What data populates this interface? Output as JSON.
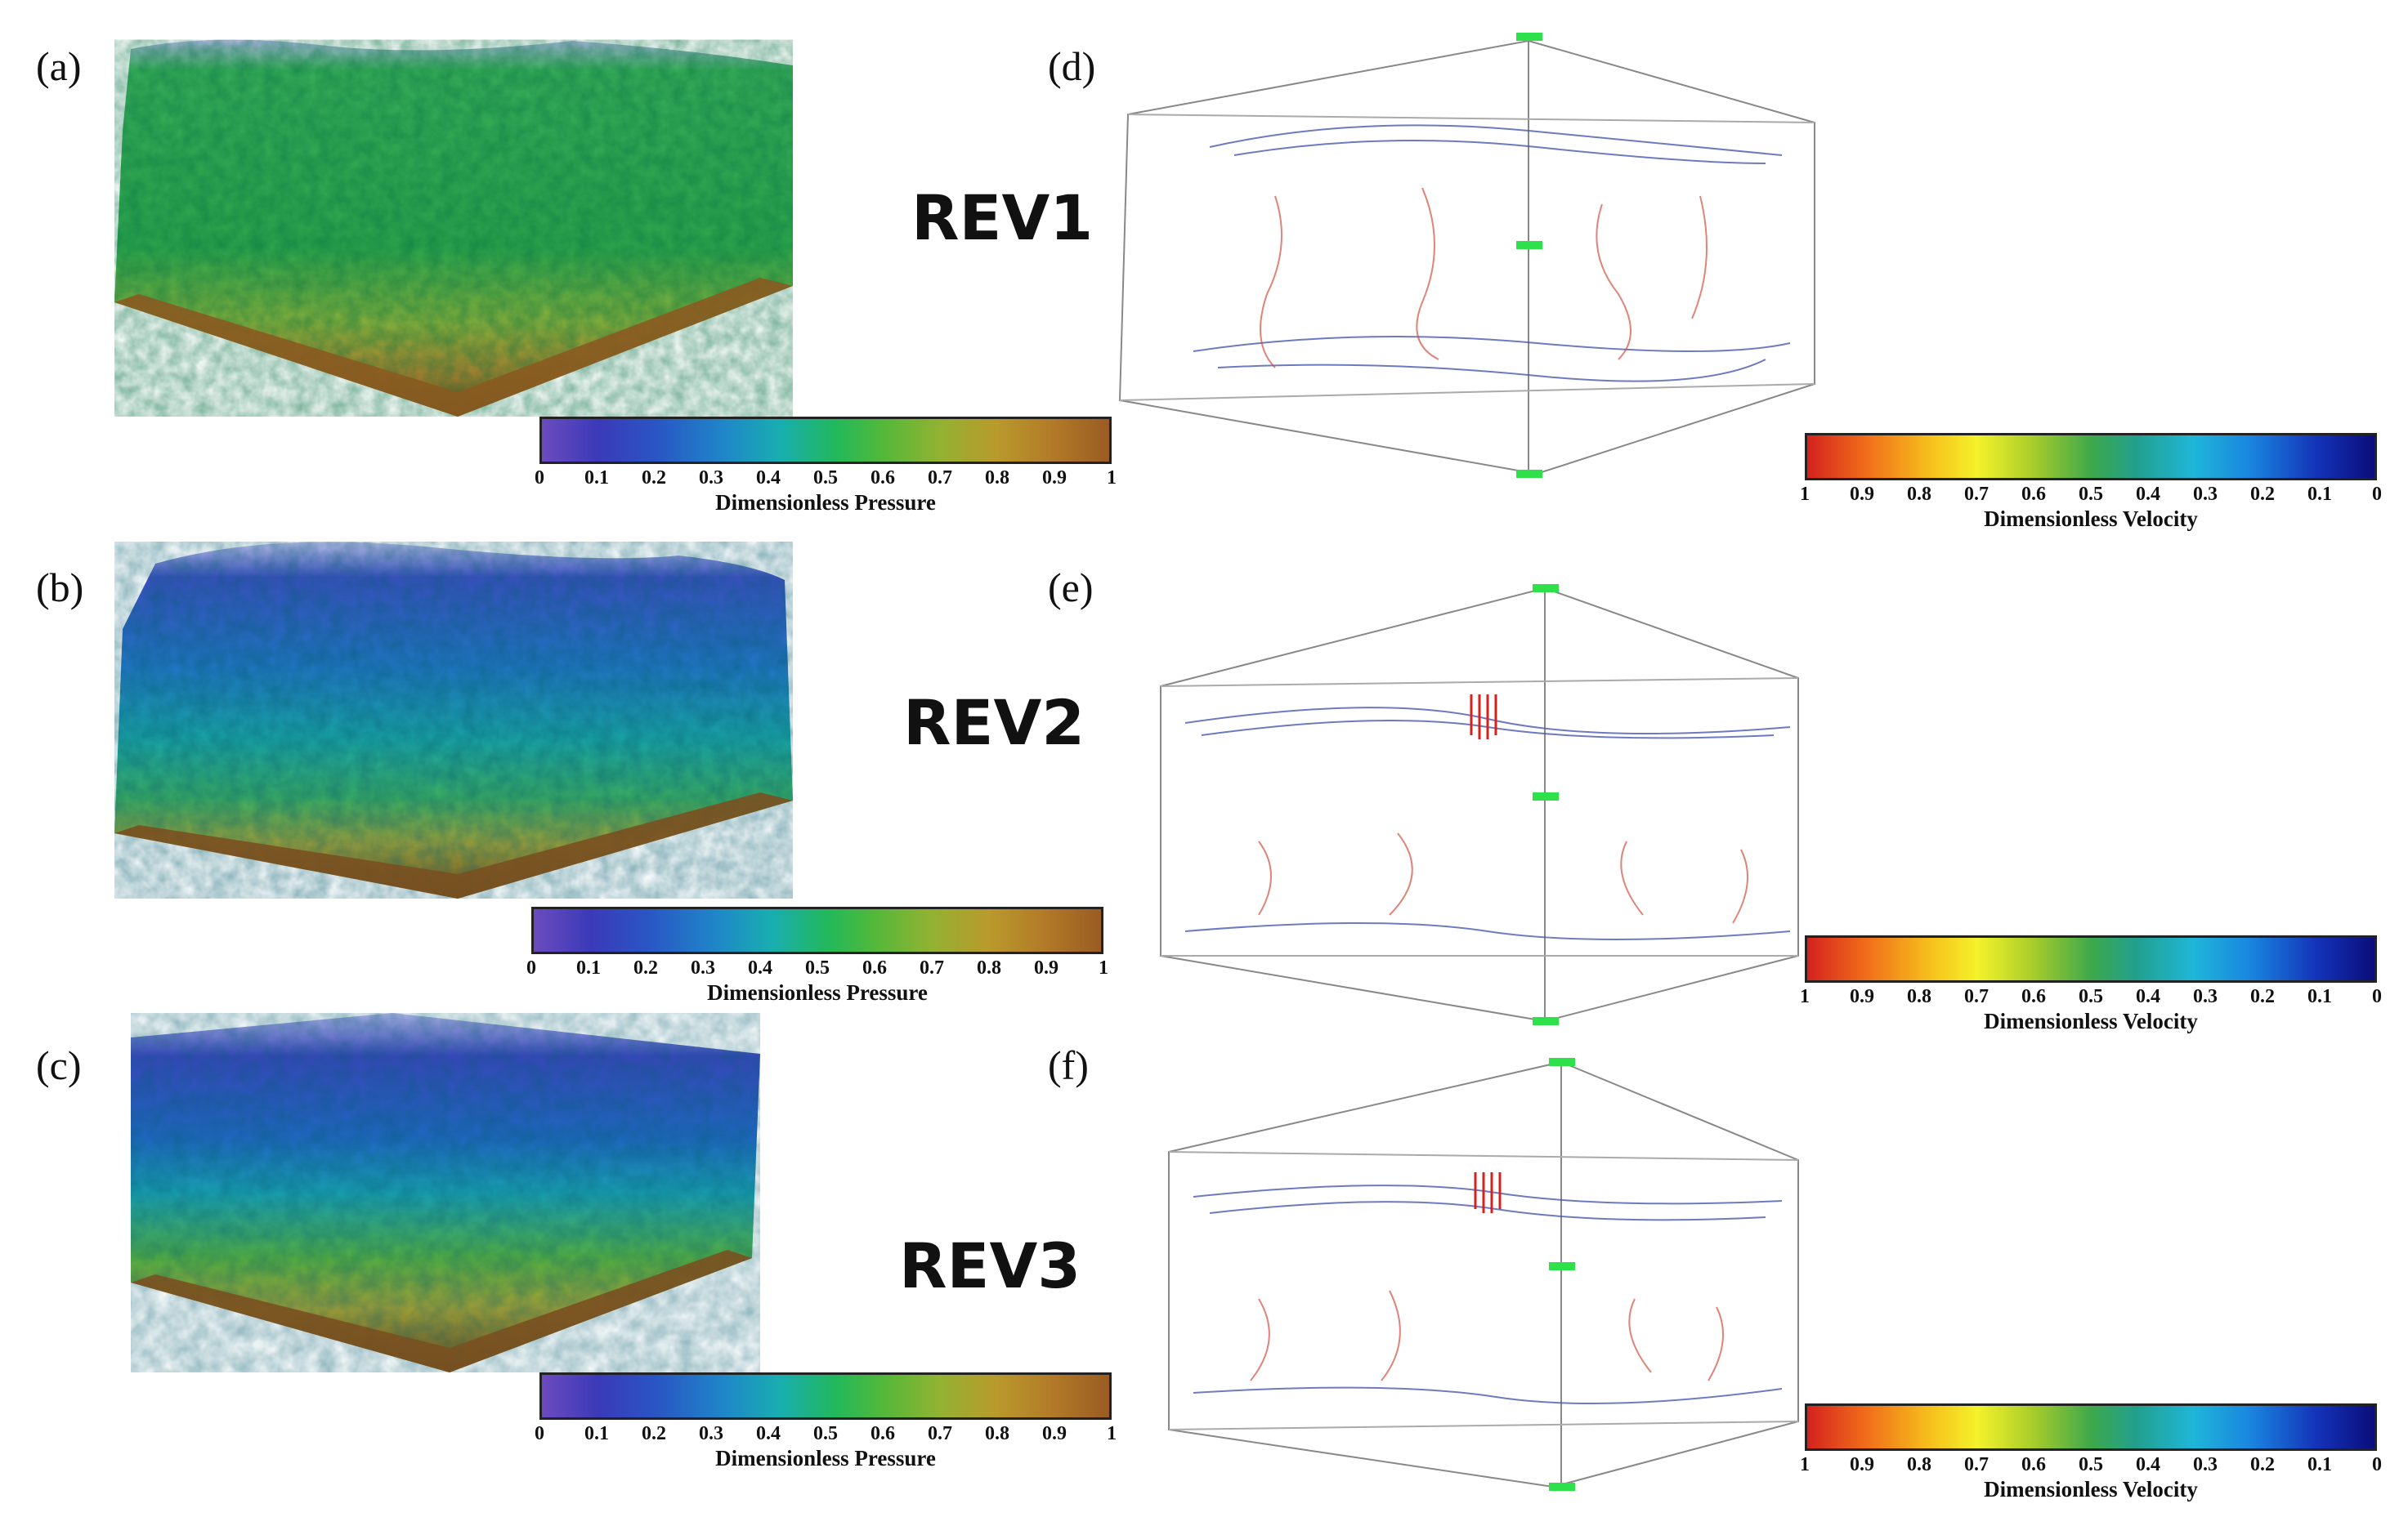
{
  "panels": {
    "a": "(a)",
    "b": "(b)",
    "c": "(c)",
    "d": "(d)",
    "e": "(e)",
    "f": "(f)"
  },
  "rev_labels": [
    "REV1",
    "REV2",
    "REV3"
  ],
  "pressure_colorbar": {
    "title": "Dimensionless Pressure",
    "ticks": [
      "0",
      "0.1",
      "0.2",
      "0.3",
      "0.4",
      "0.5",
      "0.6",
      "0.7",
      "0.8",
      "0.9",
      "1"
    ],
    "colors": [
      "#6c4bbf",
      "#2a55c4",
      "#1f86c9",
      "#19aeb0",
      "#22b85a",
      "#92b232",
      "#b99a2c",
      "#9a5c22"
    ]
  },
  "velocity_colorbar": {
    "title": "Dimensionless Velocity",
    "ticks": [
      "1",
      "0.9",
      "0.8",
      "0.7",
      "0.6",
      "0.5",
      "0.4",
      "0.3",
      "0.2",
      "0.1",
      "0"
    ],
    "colors": [
      "#d4231e",
      "#f06a1a",
      "#f4f22a",
      "#3ea84a",
      "#1fb6d8",
      "#1432b8",
      "#0a0e7a"
    ]
  },
  "box_marker_color": "#2ee04a"
}
